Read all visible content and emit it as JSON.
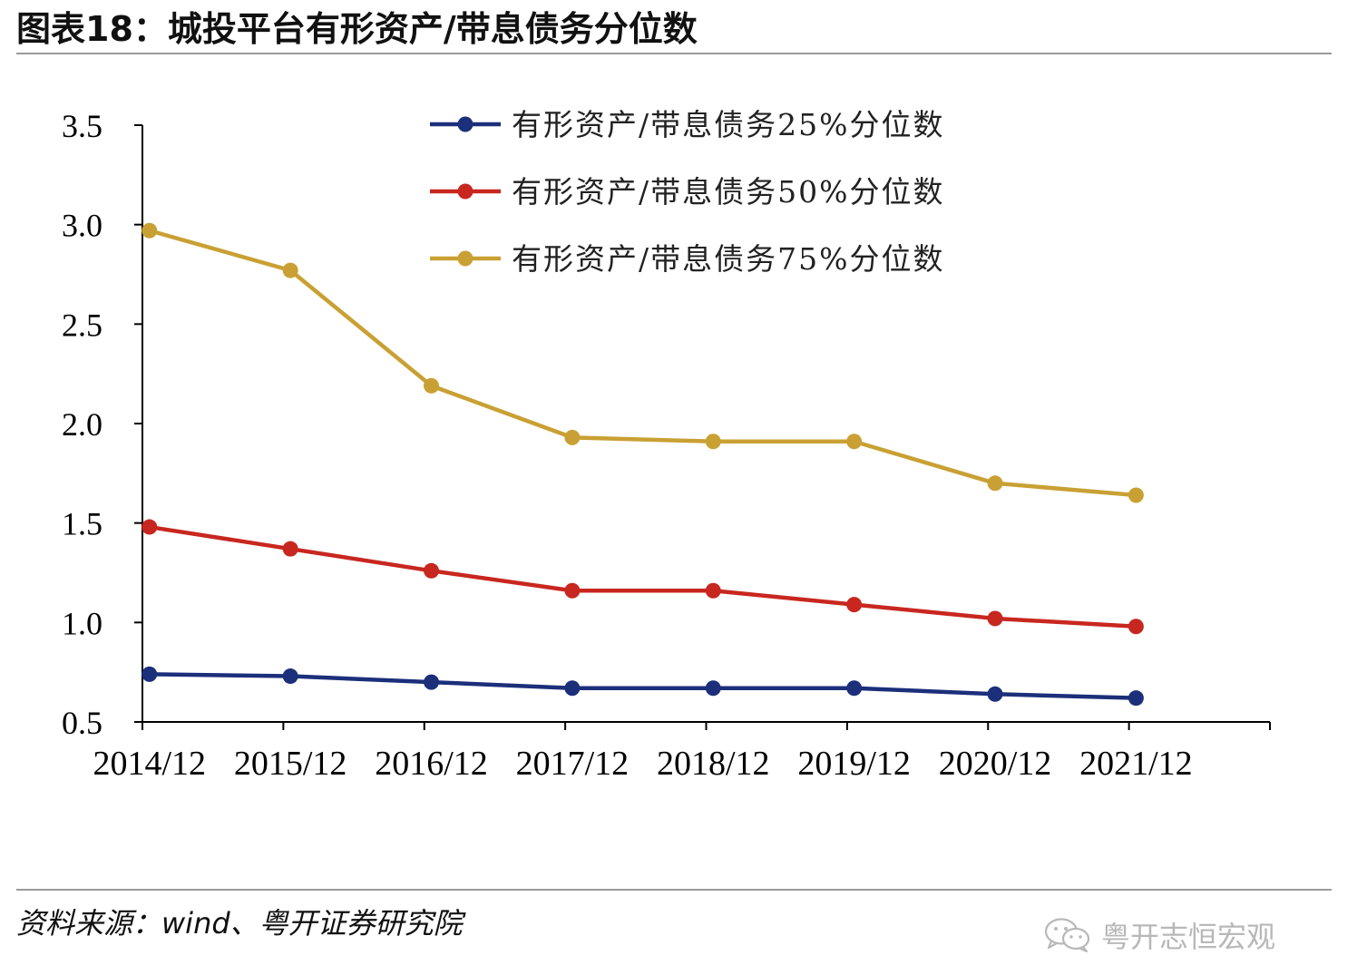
{
  "header": {
    "title": "图表18：城投平台有形资产/带息债务分位数"
  },
  "footer": {
    "source": "资料来源：wind、粤开证券研究院",
    "watermark": "粤开志恒宏观",
    "watermark_icon": "wechat-icon"
  },
  "chart_data": {
    "type": "line",
    "title": "",
    "xlabel": "",
    "ylabel": "",
    "categories": [
      "2014/12",
      "2015/12",
      "2016/12",
      "2017/12",
      "2018/12",
      "2019/12",
      "2020/12",
      "2021/12"
    ],
    "ylim": [
      0.5,
      3.5
    ],
    "yticks": [
      "0.5",
      "1.0",
      "1.5",
      "2.0",
      "2.5",
      "3.0",
      "3.5"
    ],
    "grid": false,
    "legend_position": "top",
    "series": [
      {
        "name": "有形资产/带息债务25%分位数",
        "color": "#1b2f7a",
        "values": [
          0.74,
          0.73,
          0.7,
          0.67,
          0.67,
          0.67,
          0.64,
          0.62
        ]
      },
      {
        "name": "有形资产/带息债务50%分位数",
        "color": "#c8271f",
        "values": [
          1.48,
          1.37,
          1.26,
          1.16,
          1.16,
          1.09,
          1.02,
          0.98
        ]
      },
      {
        "name": "有形资产/带息债务75%分位数",
        "color": "#c9a033",
        "values": [
          2.97,
          2.77,
          2.19,
          1.93,
          1.91,
          1.91,
          1.7,
          1.64
        ]
      }
    ]
  }
}
